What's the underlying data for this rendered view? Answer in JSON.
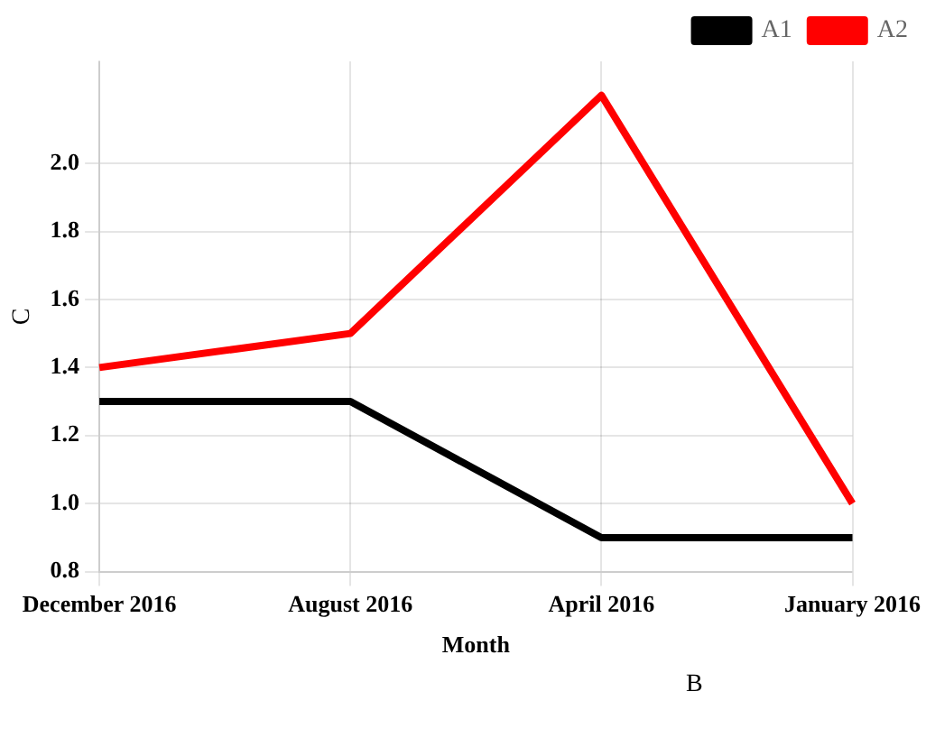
{
  "chart_data": {
    "type": "line",
    "xlabel": "Month",
    "ylabel": "C",
    "annotations": [
      "B"
    ],
    "categories": [
      "December 2016",
      "August 2016",
      "April 2016",
      "January 2016"
    ],
    "series": [
      {
        "name": "A1",
        "color": "#000000",
        "values": [
          1.3,
          1.3,
          0.9,
          0.9
        ]
      },
      {
        "name": "A2",
        "color": "#ff0000",
        "values": [
          1.4,
          1.5,
          2.2,
          1.0
        ]
      }
    ],
    "ylim": [
      0.8,
      2.3
    ],
    "yticks": [
      0.8,
      {
        "value": 1,
        "label": "1.0"
      },
      1.2,
      1.4,
      1.6,
      1.8,
      {
        "value": 2,
        "label": "2.0"
      }
    ],
    "grid": true,
    "legend": "top right",
    "marker": "none",
    "line_style": "solid"
  }
}
